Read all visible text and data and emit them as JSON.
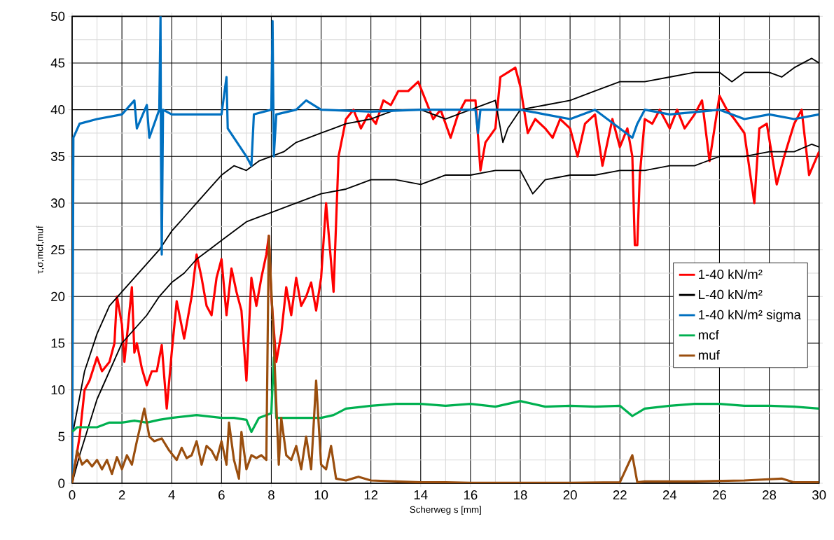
{
  "chart_data": {
    "type": "line",
    "xlabel": "Scherweg s [mm]",
    "ylabel": "τ,σ,mcf,muf",
    "xlim": [
      0,
      30
    ],
    "ylim": [
      0,
      50
    ],
    "xticks": [
      0,
      2,
      4,
      6,
      8,
      10,
      12,
      14,
      16,
      18,
      20,
      22,
      24,
      26,
      28,
      30
    ],
    "yticks": [
      0,
      5,
      10,
      15,
      20,
      25,
      30,
      35,
      40,
      45,
      50
    ],
    "grid": true,
    "legend": "right",
    "series": [
      {
        "name": "1-40 kN/m²",
        "color": "#ff0000",
        "x": [
          0,
          0.3,
          0.5,
          0.7,
          1.0,
          1.2,
          1.5,
          1.7,
          1.8,
          2.0,
          2.1,
          2.4,
          2.5,
          2.6,
          2.8,
          3.0,
          3.2,
          3.4,
          3.6,
          3.8,
          4.0,
          4.2,
          4.5,
          4.8,
          5.0,
          5.2,
          5.4,
          5.6,
          5.8,
          6.0,
          6.2,
          6.4,
          6.6,
          6.8,
          7.0,
          7.2,
          7.4,
          7.6,
          7.8,
          7.9,
          8.0,
          8.2,
          8.4,
          8.6,
          8.8,
          9.0,
          9.2,
          9.4,
          9.6,
          9.8,
          10.0,
          10.2,
          10.5,
          10.7,
          11.0,
          11.3,
          11.6,
          11.9,
          12.2,
          12.5,
          12.8,
          13.1,
          13.5,
          13.9,
          14.2,
          14.5,
          14.8,
          15.2,
          15.5,
          15.8,
          16.2,
          16.4,
          16.6,
          17.0,
          17.2,
          17.5,
          17.8,
          18.0,
          18.3,
          18.6,
          19.0,
          19.3,
          19.6,
          20.0,
          20.3,
          20.6,
          21.0,
          21.3,
          21.7,
          22.0,
          22.3,
          22.5,
          22.6,
          22.7,
          22.8,
          23.0,
          23.3,
          23.6,
          24.0,
          24.3,
          24.6,
          25.0,
          25.3,
          25.6,
          26.0,
          26.3,
          26.6,
          27.0,
          27.4,
          27.6,
          27.9,
          28.3,
          28.6,
          29.0,
          29.3,
          29.6,
          30.0
        ],
        "values": [
          0,
          5,
          10,
          11,
          13.5,
          12,
          13,
          15,
          20,
          17,
          13,
          21,
          14,
          15,
          12.3,
          10.5,
          12,
          12,
          14.8,
          8,
          14,
          19.5,
          15.5,
          20,
          24.5,
          22,
          19,
          18,
          22,
          24,
          18,
          23,
          20.5,
          18.5,
          11,
          22,
          19,
          22,
          24.5,
          26.5,
          20,
          13,
          16,
          21,
          18,
          22,
          19,
          20,
          21.5,
          18.5,
          22,
          30,
          20.5,
          35,
          39,
          40,
          38,
          39.5,
          38.5,
          41,
          40.5,
          42,
          42,
          43,
          41,
          39,
          40,
          37,
          39.5,
          41,
          41,
          33.5,
          36.5,
          38,
          43.5,
          44,
          44.5,
          42.5,
          37.5,
          39,
          38,
          37,
          39,
          38,
          35,
          38.5,
          39.5,
          34,
          39,
          36,
          38,
          35,
          25.5,
          25.5,
          33,
          39,
          38.5,
          40,
          38,
          40,
          38,
          39.5,
          41,
          34.5,
          41.5,
          40,
          39,
          37.5,
          30,
          38,
          38.5,
          32,
          35,
          38.5,
          40,
          33,
          35.5
        ]
      },
      {
        "name": "L-40 kN/m²",
        "color": "#000000",
        "x": [
          0,
          0.5,
          1,
          1.5,
          2,
          2.5,
          3,
          3.5,
          4,
          4.5,
          5,
          5.5,
          6,
          6.5,
          7,
          7.5,
          8,
          8.5,
          9,
          9.5,
          10,
          10.5,
          11,
          12,
          13,
          14,
          15,
          16,
          17,
          17.3,
          17.5,
          18,
          19,
          20,
          21,
          22,
          23,
          24,
          25,
          26,
          26.5,
          27,
          28,
          28.5,
          29,
          29.7,
          30
        ],
        "values": [
          5,
          12,
          16,
          19,
          20.5,
          22,
          23.5,
          25,
          27,
          28.5,
          30,
          31.5,
          33,
          34,
          33.5,
          34.5,
          35,
          35.5,
          36.5,
          37,
          37.5,
          38,
          38.5,
          39,
          40,
          40,
          39,
          40,
          41,
          36.5,
          38,
          40,
          40.5,
          41,
          42,
          43,
          43,
          43.5,
          44,
          44,
          43,
          44,
          44,
          43.5,
          44.5,
          45.5,
          45
        ]
      },
      {
        "color": "#000000",
        "x": [
          0,
          0.3,
          1,
          1.5,
          2,
          2.5,
          3,
          3.5,
          4,
          4.5,
          5,
          5.5,
          6,
          6.5,
          7,
          7.5,
          8,
          8.5,
          9,
          9.5,
          10,
          11,
          12,
          13,
          14,
          15,
          16,
          17,
          18,
          18.5,
          19,
          20,
          21,
          22,
          23,
          24,
          25,
          26,
          27,
          28,
          29,
          29.7,
          30
        ],
        "values": [
          0,
          3,
          9,
          12,
          15,
          16.5,
          18,
          20,
          21.5,
          22.5,
          24,
          25,
          26,
          27,
          28,
          28.5,
          29,
          29.5,
          30,
          30.5,
          31,
          31.5,
          32.5,
          32.5,
          32,
          33,
          33,
          33.5,
          33.5,
          31,
          32.5,
          33,
          33,
          33.5,
          33.5,
          34,
          34,
          35,
          35,
          35.5,
          35.5,
          36.3,
          36
        ]
      },
      {
        "name": "1-40 kN/m² sigma",
        "color": "#0070c0",
        "x": [
          0,
          0.05,
          0.3,
          1,
          2,
          2.5,
          2.6,
          3.0,
          3.1,
          3.5,
          3.55,
          3.57,
          3.6,
          3.65,
          4.0,
          6.0,
          6.2,
          6.25,
          7.0,
          7.2,
          7.3,
          8.0,
          8.05,
          8.1,
          8.2,
          9.0,
          9.4,
          10,
          12,
          14,
          16.2,
          16.3,
          16.4,
          18,
          19,
          20,
          21,
          22.5,
          22.7,
          23,
          24,
          26,
          27,
          28,
          29,
          30
        ],
        "values": [
          0,
          37,
          38.5,
          39,
          39.5,
          41,
          38,
          40.5,
          37,
          40,
          50,
          34.5,
          24.5,
          40,
          39.5,
          39.5,
          43.5,
          38,
          35,
          34,
          39.5,
          40,
          49.5,
          35,
          39.5,
          40,
          41,
          40,
          39.8,
          40,
          40,
          37.5,
          40,
          40,
          39.5,
          39,
          40,
          37,
          38.5,
          40,
          39.5,
          40,
          39,
          39.5,
          39,
          39.5
        ]
      },
      {
        "name": "mcf",
        "color": "#00b050",
        "x": [
          0,
          0.2,
          0.5,
          1,
          1.5,
          2,
          2.5,
          3,
          3.5,
          4,
          5,
          6,
          6.5,
          7,
          7.2,
          7.5,
          8,
          8.1,
          8.2,
          8.5,
          9,
          10,
          10.5,
          11,
          12,
          13,
          14,
          15,
          16,
          17,
          18,
          19,
          20,
          21,
          22,
          22.5,
          23,
          24,
          25,
          26,
          27,
          28,
          29,
          30
        ],
        "values": [
          5.5,
          6,
          6,
          6,
          6.5,
          6.5,
          6.7,
          6.5,
          6.8,
          7,
          7.3,
          7,
          7,
          6.8,
          5.5,
          7,
          7.5,
          13.5,
          7,
          7,
          7,
          7,
          7.3,
          8,
          8.3,
          8.5,
          8.5,
          8.3,
          8.5,
          8.2,
          8.8,
          8.2,
          8.3,
          8.2,
          8.3,
          7.2,
          8,
          8.3,
          8.5,
          8.5,
          8.3,
          8.3,
          8.2,
          8
        ]
      },
      {
        "name": "muf",
        "color": "#9a4e0e",
        "x": [
          0,
          0.2,
          0.4,
          0.6,
          0.8,
          1,
          1.2,
          1.4,
          1.6,
          1.8,
          2.0,
          2.2,
          2.4,
          2.6,
          2.9,
          3.1,
          3.3,
          3.6,
          3.9,
          4.2,
          4.4,
          4.6,
          4.8,
          5.0,
          5.2,
          5.4,
          5.6,
          5.8,
          6.0,
          6.2,
          6.3,
          6.5,
          6.7,
          6.8,
          7.0,
          7.2,
          7.4,
          7.6,
          7.8,
          7.9,
          8.1,
          8.3,
          8.4,
          8.6,
          8.8,
          9.0,
          9.2,
          9.4,
          9.6,
          9.8,
          10.0,
          10.2,
          10.4,
          10.6,
          11,
          11.5,
          12,
          13,
          14,
          15,
          16,
          20,
          22,
          22.5,
          22.7,
          23,
          25,
          27,
          28.5,
          29,
          30
        ],
        "values": [
          0,
          3.5,
          2,
          2.5,
          1.8,
          2.5,
          1.5,
          2.5,
          1,
          2.8,
          1.5,
          3,
          2,
          4.5,
          8,
          5,
          4.5,
          4.8,
          3.5,
          2.5,
          3.8,
          2.7,
          3,
          4.5,
          2,
          4,
          3.5,
          2.5,
          4.5,
          2,
          6.5,
          2.5,
          0.5,
          5.5,
          1.5,
          3,
          2.7,
          3,
          2.5,
          26.5,
          15,
          2,
          7,
          3,
          2.5,
          4,
          1.5,
          5,
          1.5,
          11,
          2,
          1.5,
          4,
          0.5,
          0.3,
          0.7,
          0.3,
          0.2,
          0.1,
          0.1,
          0.05,
          0.05,
          0.1,
          3,
          0.1,
          0.2,
          0.2,
          0.3,
          0.5,
          0.1,
          0.1
        ]
      }
    ]
  }
}
